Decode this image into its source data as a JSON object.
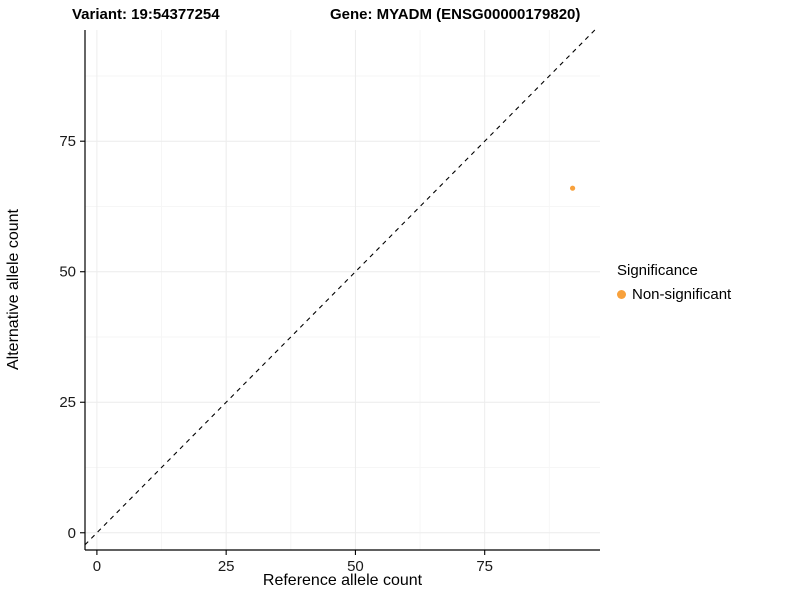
{
  "chart_data": {
    "type": "scatter",
    "title_left": "Variant: 19:54377254",
    "title_right": "Gene: MYADM (ENSG00000179820)",
    "xlabel": "Reference allele count",
    "ylabel": "Alternative allele count",
    "xlim": [
      -2.3,
      97.3
    ],
    "ylim": [
      -3.3,
      96.3
    ],
    "x_ticks": [
      0,
      25,
      50,
      75
    ],
    "y_ticks": [
      0,
      25,
      50,
      75
    ],
    "x_minor_ticks": [
      12.5,
      37.5,
      62.5,
      87.5
    ],
    "y_minor_ticks": [
      12.5,
      37.5,
      62.5,
      87.5
    ],
    "grid": true,
    "identity_line": {
      "style": "dashed",
      "color": "#000000",
      "from": -2.3,
      "to": 96.3
    },
    "series": [
      {
        "name": "Non-significant",
        "color": "#F8A13C",
        "points": [
          {
            "x": 92,
            "y": 66
          }
        ]
      }
    ],
    "legend": {
      "title": "Significance",
      "position": "right"
    }
  },
  "colors": {
    "major_grid": "#ECECEC",
    "minor_grid": "#F6F6F6",
    "axis": "#000000",
    "tick_text": "#1A1A1A"
  }
}
